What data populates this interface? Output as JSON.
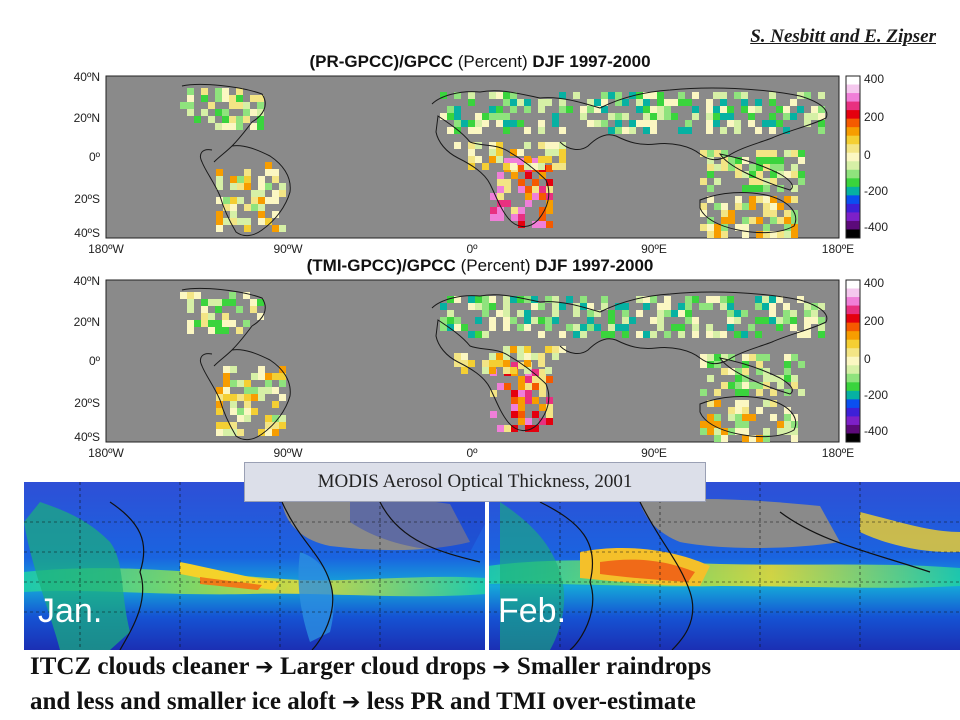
{
  "credit": "S. Nesbitt and E. Zipser",
  "panels": [
    {
      "title_a": "(PR-GPCC)/GPCC",
      "title_b": "(Percent)",
      "title_c": "DJF 1997-2000"
    },
    {
      "title_a": "(TMI-GPCC)/GPCC",
      "title_b": "(Percent)",
      "title_c": "DJF 1997-2000"
    }
  ],
  "lat_labels": [
    "40ºN",
    "20ºN",
    "0º",
    "20ºS",
    "40ºS"
  ],
  "lon_labels": [
    "180ºW",
    "90ºW",
    "0º",
    "90ºE",
    "180ºE"
  ],
  "colorbar_labels": [
    "400",
    "200",
    "0",
    "-200",
    "-400"
  ],
  "colorbar_colors": [
    "#ffffff",
    "#f5c8ee",
    "#f07fd8",
    "#e83080",
    "#e4000e",
    "#f55a00",
    "#f79d00",
    "#f4cf33",
    "#f3e585",
    "#fbf7c2",
    "#d6f0a6",
    "#8fe37d",
    "#3ad43d",
    "#06b1a2",
    "#0a4ff0",
    "#3d20d8",
    "#7d20c8",
    "#5c0a7a",
    "#000000"
  ],
  "map_background": "#8a8a8a",
  "modis": {
    "caption": "MODIS Aerosol Optical Thickness, 2001",
    "months": [
      "Jan.",
      "Feb."
    ]
  },
  "bottom_text": {
    "line1_a": "ITCZ clouds cleaner",
    "line1_b": "Larger cloud drops",
    "line1_c": "Smaller raindrops",
    "line2_a": "and less and smaller ice aloft",
    "line2_b": "less PR and TMI over-estimate"
  }
}
